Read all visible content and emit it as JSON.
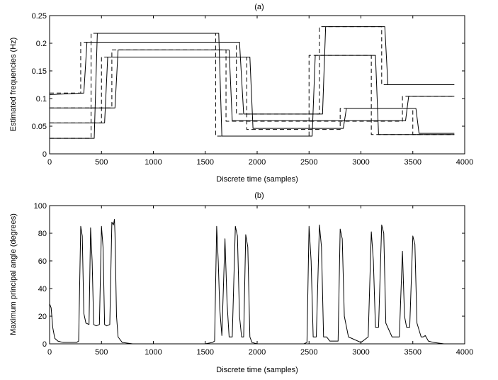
{
  "chart_data": [
    {
      "type": "line",
      "title": "(a)",
      "xlabel": "Discrete time (samples)",
      "ylabel": "Estimated frequencies (Hz)",
      "xlim": [
        0,
        4000
      ],
      "ylim": [
        0,
        0.25
      ],
      "xticks": [
        0,
        500,
        1000,
        1500,
        2000,
        2500,
        3000,
        3500,
        4000
      ],
      "yticks": [
        0,
        0.05,
        0.1,
        0.15,
        0.2,
        0.25
      ],
      "ytick_labels": [
        "0",
        "0.05",
        "0.1",
        "0.15",
        "0.2",
        "0.25"
      ],
      "grid": false,
      "series": [
        {
          "style": "dashed",
          "x": [
            0,
            300,
            300,
            1800,
            1800,
            2600,
            2600,
            3200,
            3200,
            3900
          ],
          "y": [
            0.11,
            0.11,
            0.202,
            0.202,
            0.072,
            0.072,
            0.23,
            0.23,
            0.125,
            0.125
          ]
        },
        {
          "style": "solid",
          "x": [
            0,
            330,
            360,
            1830,
            1870,
            2630,
            2660,
            3230,
            3260,
            3900
          ],
          "y": [
            0.107,
            0.11,
            0.202,
            0.202,
            0.072,
            0.072,
            0.23,
            0.23,
            0.125,
            0.125
          ]
        },
        {
          "style": "dashed",
          "x": [
            0,
            400,
            400,
            1600,
            1600,
            2500,
            2500,
            3100,
            3100,
            3900
          ],
          "y": [
            0.028,
            0.028,
            0.218,
            0.218,
            0.032,
            0.032,
            0.178,
            0.178,
            0.035,
            0.035
          ]
        },
        {
          "style": "solid",
          "x": [
            0,
            430,
            460,
            1630,
            1660,
            2530,
            2560,
            3140,
            3170,
            3900
          ],
          "y": [
            0.028,
            0.028,
            0.218,
            0.218,
            0.032,
            0.032,
            0.178,
            0.178,
            0.035,
            0.035
          ]
        },
        {
          "style": "dashed",
          "x": [
            0,
            500,
            500,
            1900,
            1900,
            2800,
            2800,
            3500,
            3500,
            3900
          ],
          "y": [
            0.056,
            0.056,
            0.175,
            0.175,
            0.044,
            0.044,
            0.082,
            0.082,
            0.035,
            0.035
          ]
        },
        {
          "style": "solid",
          "x": [
            0,
            530,
            560,
            1930,
            1960,
            2830,
            2860,
            3530,
            3560,
            3900
          ],
          "y": [
            0.056,
            0.056,
            0.175,
            0.175,
            0.046,
            0.046,
            0.082,
            0.082,
            0.037,
            0.037
          ]
        },
        {
          "style": "dashed",
          "x": [
            0,
            600,
            600,
            1700,
            1700,
            3400,
            3400,
            3900
          ],
          "y": [
            0.083,
            0.083,
            0.188,
            0.188,
            0.059,
            0.059,
            0.104,
            0.104
          ]
        },
        {
          "style": "solid",
          "x": [
            0,
            630,
            660,
            1730,
            1760,
            3430,
            3460,
            3900
          ],
          "y": [
            0.083,
            0.083,
            0.188,
            0.188,
            0.06,
            0.06,
            0.104,
            0.104
          ]
        }
      ]
    },
    {
      "type": "line",
      "title": "(b)",
      "xlabel": "Discrete time (samples)",
      "ylabel": "Maximum principal angle (degrees)",
      "xlim": [
        0,
        4000
      ],
      "ylim": [
        0,
        100
      ],
      "xticks": [
        0,
        500,
        1000,
        1500,
        2000,
        2500,
        3000,
        3500,
        4000
      ],
      "yticks": [
        0,
        20,
        40,
        60,
        80,
        100
      ],
      "ytick_labels": [
        "0",
        "20",
        "40",
        "60",
        "80",
        "100"
      ],
      "grid": false,
      "series": [
        {
          "style": "solid",
          "x": [
            0,
            15,
            30,
            50,
            80,
            130,
            200,
            260,
            280,
            300,
            315,
            330,
            350,
            380,
            395,
            410,
            425,
            450,
            480,
            500,
            515,
            530,
            550,
            580,
            600,
            615,
            625,
            630,
            645,
            660,
            700,
            800,
            1000,
            1200,
            1400,
            1500,
            1570,
            1590,
            1610,
            1625,
            1640,
            1660,
            1690,
            1710,
            1730,
            1760,
            1790,
            1810,
            1830,
            1850,
            1870,
            1890,
            1910,
            1930,
            1950,
            2000,
            2200,
            2450,
            2480,
            2500,
            2520,
            2540,
            2570,
            2600,
            2620,
            2640,
            2670,
            2700,
            2780,
            2800,
            2820,
            2840,
            2880,
            3000,
            3070,
            3100,
            3120,
            3140,
            3170,
            3200,
            3220,
            3240,
            3300,
            3370,
            3400,
            3420,
            3440,
            3470,
            3500,
            3520,
            3540,
            3580,
            3600,
            3620,
            3650,
            3700,
            3800,
            3880
          ],
          "y": [
            29,
            26,
            12,
            4,
            2,
            1,
            1,
            1,
            2,
            85,
            78,
            22,
            15,
            14,
            84,
            60,
            14,
            13,
            14,
            85,
            70,
            14,
            13,
            14,
            88,
            86,
            90,
            80,
            20,
            5,
            1,
            0,
            0,
            0,
            0,
            0,
            1,
            2,
            85,
            60,
            25,
            6,
            76,
            30,
            5,
            5,
            85,
            78,
            20,
            5,
            5,
            79,
            70,
            5,
            1,
            0,
            0,
            0,
            1,
            85,
            60,
            5,
            5,
            86,
            70,
            5,
            5,
            2,
            2,
            83,
            76,
            20,
            5,
            1,
            5,
            81,
            60,
            12,
            12,
            86,
            80,
            15,
            5,
            5,
            67,
            20,
            12,
            12,
            78,
            72,
            15,
            5,
            5,
            6,
            2,
            1,
            0,
            0
          ]
        }
      ]
    }
  ]
}
